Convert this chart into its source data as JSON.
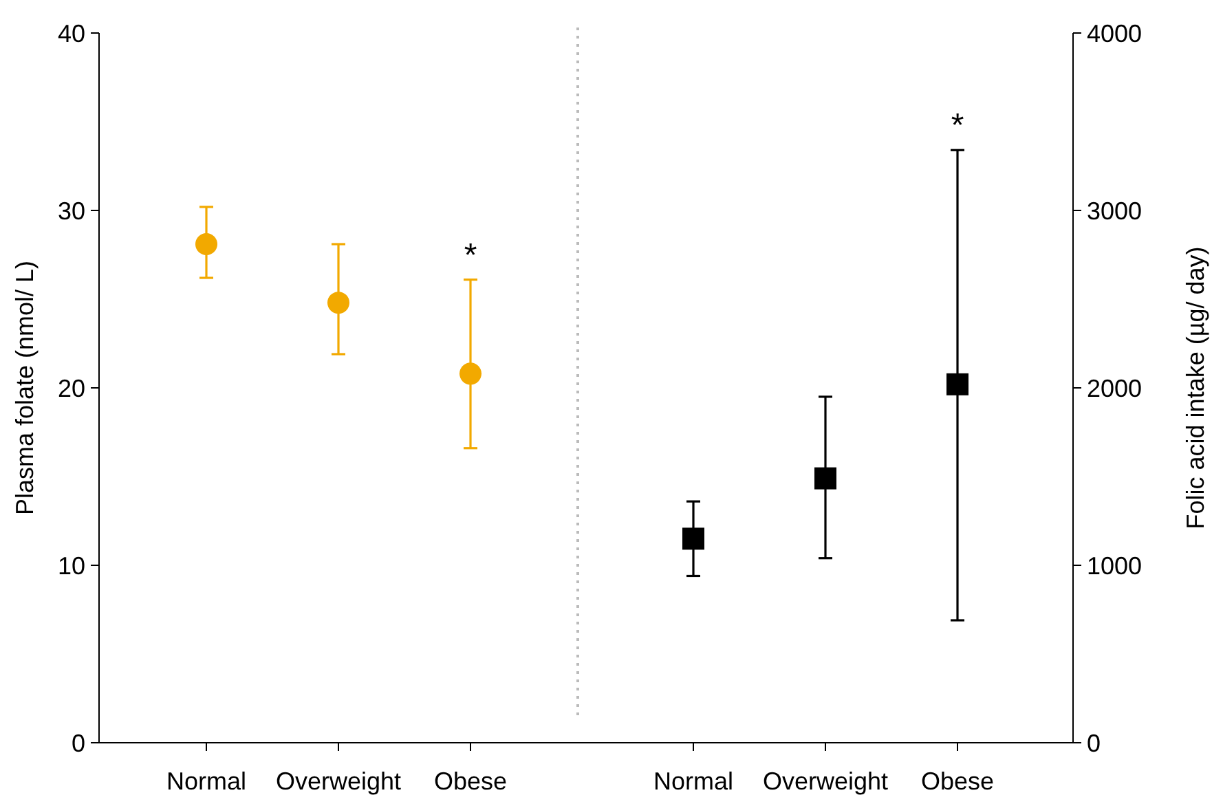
{
  "chart_data": [
    {
      "type": "scatter",
      "categories": [
        "Normal",
        "Overweight",
        "Obese"
      ],
      "ylabel": "Plasma folate (nmol/ L)",
      "ylim": [
        0,
        40
      ],
      "yticks": [
        0,
        10,
        20,
        30,
        40
      ],
      "series": [
        {
          "color": "#f2a900",
          "marker": "circle",
          "values": [
            28.1,
            24.8,
            20.8
          ],
          "errors": [
            [
              26.2,
              30.2
            ],
            [
              21.9,
              28.1
            ],
            [
              16.6,
              26.1
            ]
          ]
        }
      ],
      "annotations": [
        "*"
      ],
      "grid": false
    },
    {
      "type": "scatter",
      "categories": [
        "Normal",
        "Overweight",
        "Obese"
      ],
      "y2label": "Folic acid intake (µg/ day)",
      "y2lim": [
        0,
        4000
      ],
      "y2ticks": [
        0,
        1000,
        2000,
        3000,
        4000
      ],
      "series": [
        {
          "color": "#000000",
          "marker": "square",
          "axis": "y2",
          "values": [
            1150,
            1490,
            2020
          ],
          "errors": [
            [
              940,
              1360
            ],
            [
              1040,
              1950
            ],
            [
              690,
              3340
            ]
          ]
        }
      ],
      "annotations": [
        "*"
      ],
      "grid": false
    }
  ]
}
